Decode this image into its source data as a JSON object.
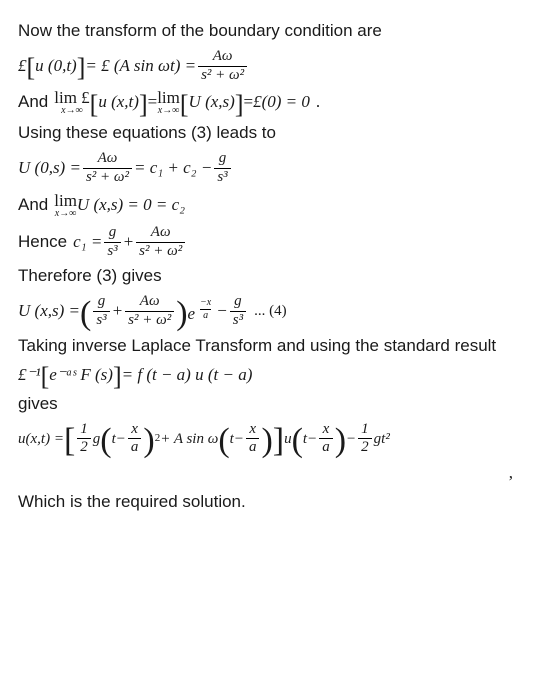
{
  "text": {
    "p1": "Now the transform of the boundary condition are",
    "and1": "And",
    "p2": "Using these equations (3) leads to",
    "and2": "And",
    "hence": "Hence",
    "p3": "Therefore (3) gives",
    "tag4": "... (4)",
    "p4": "Taking inverse Laplace Transform and using the standard result",
    "gives": "gives",
    "p5": "Which is the required solution.",
    "comma": ","
  },
  "math": {
    "L": "£",
    "u01": "u (0,t)",
    "Asinwt": "A sin ωt",
    "Aw": "Aω",
    "s2w2": "s² + ω²",
    "limuxt": "u (x,t)",
    "limUxs": "U (x,s)",
    "L0eq0": "£(0) = 0",
    "period": ".",
    "U0s": "U (0,s) =",
    "c1c2": "= c₁ + c₂ −",
    "g": "g",
    "s3": "s³",
    "limUxs0": "U (x,s) = 0 = c₂",
    "c1eq": "c₁ =",
    "plus": "+",
    "Uxs": "U (x,s) =",
    "emsx": "e",
    "mxa_num": "−x",
    "mxa_den": "a",
    "minus": "−",
    "Linv": "£⁻¹",
    "eas": "e⁻ᵃˢ F (s)",
    "ftau": "= f (t − a) u (t − a)",
    "uxteq": "u(x,t) =",
    "half": "1",
    "two": "2",
    "gtxa": "g",
    "t": "t",
    "x": "x",
    "a": "a",
    "sq": "2",
    "Asinw": "+ A sin ω",
    "u": "u",
    "gt2": "gt²",
    "lim": "lim",
    "xinf": "x→∞",
    "eqb1": "= £ ( ",
    "eqb2": " ) =",
    "opensq": "[",
    "closesq": "]",
    "eq": "="
  }
}
